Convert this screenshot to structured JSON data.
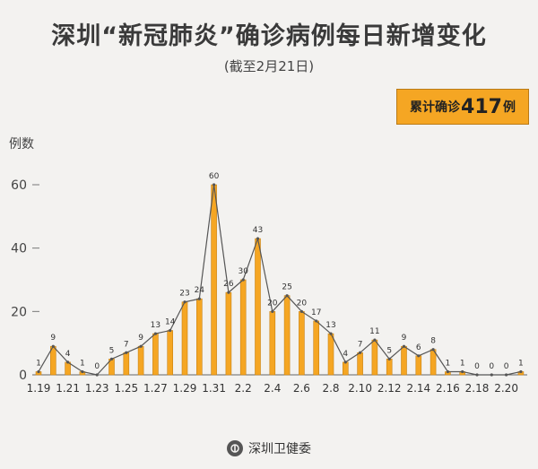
{
  "title": "深圳“新冠肺炎”确诊病例每日新增变化",
  "subtitle": "(截至2月21日)",
  "total": {
    "prefix": "累计确诊",
    "value": "417",
    "suffix": "例"
  },
  "footer": {
    "text": "深圳卫健委",
    "icon": "health-commission-logo"
  },
  "colors": {
    "bar": "#f5a623",
    "bar_stroke": "#c98314",
    "line": "#555555",
    "box": "#f5a623"
  },
  "chart_data": {
    "type": "bar",
    "ylabel": "例数",
    "ylim": [
      0,
      65
    ],
    "yticks": [
      0,
      20,
      40,
      60
    ],
    "categories": [
      "1.19",
      "1.20",
      "1.21",
      "1.22",
      "1.23",
      "1.24",
      "1.25",
      "1.26",
      "1.27",
      "1.28",
      "1.29",
      "1.30",
      "1.31",
      "2.1",
      "2.2",
      "2.3",
      "2.4",
      "2.5",
      "2.6",
      "2.7",
      "2.8",
      "2.9",
      "2.10",
      "2.11",
      "2.12",
      "2.13",
      "2.14",
      "2.15",
      "2.16",
      "2.17",
      "2.18",
      "2.19",
      "2.20",
      "2.21"
    ],
    "x_tick_labels": [
      "1.19",
      "1.21",
      "1.23",
      "1.25",
      "1.27",
      "1.29",
      "1.31",
      "2.2",
      "2.4",
      "2.6",
      "2.8",
      "2.10",
      "2.12",
      "2.14",
      "2.16",
      "2.18",
      "2.20"
    ],
    "values": [
      1,
      9,
      4,
      1,
      0,
      5,
      7,
      9,
      13,
      14,
      23,
      24,
      60,
      26,
      30,
      43,
      20,
      25,
      20,
      17,
      13,
      4,
      7,
      11,
      5,
      9,
      6,
      8,
      1,
      1,
      0,
      0,
      0,
      1
    ],
    "overlay_line": true
  }
}
